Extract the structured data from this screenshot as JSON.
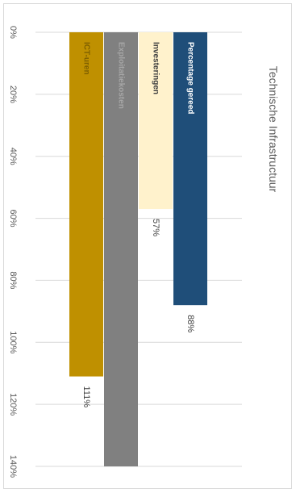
{
  "chart_data": {
    "type": "bar",
    "orientation": "horizontal",
    "title": "Technische Infrastructuur",
    "categories": [
      "Percentage gereed",
      "Investeringen",
      "Exploitatiekosten",
      "ICT-uren"
    ],
    "values": [
      88,
      57,
      140,
      111
    ],
    "data_labels": [
      "88%",
      "57%",
      "",
      "111%"
    ],
    "colors": [
      "#1f4e79",
      "#fff2cc",
      "#808080",
      "#bf9000"
    ],
    "label_colors": [
      "#ffffff",
      "#404040",
      "#a6a6a6",
      "#7f6000"
    ],
    "xlim": [
      0,
      140
    ],
    "ticks": [
      0,
      20,
      40,
      60,
      80,
      100,
      120,
      140
    ],
    "tick_suffix": "%",
    "grid": true
  }
}
